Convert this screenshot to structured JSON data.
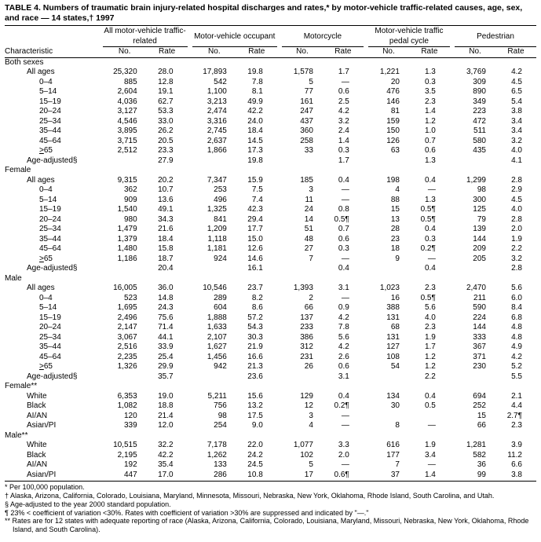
{
  "title": "TABLE 4. Numbers of traumatic brain injury-related hospital discharges and rates,* by motor-vehicle traffic-related causes, age, sex, and race — 14 states,† 1997",
  "header": {
    "characteristic": "Characteristic",
    "groups": [
      {
        "label": "All motor-vehicle traffic-related",
        "no": "No.",
        "rate": "Rate"
      },
      {
        "label": "Motor-vehicle occupant",
        "no": "No.",
        "rate": "Rate"
      },
      {
        "label": "Motorcycle",
        "no": "No.",
        "rate": "Rate"
      },
      {
        "label": "Motor-vehicle traffic pedal cycle",
        "no": "No.",
        "rate": "Rate"
      },
      {
        "label": "Pedestrian",
        "no": "No.",
        "rate": "Rate"
      }
    ]
  },
  "sections": [
    {
      "label": "Both sexes",
      "rows": [
        {
          "label": "All ages",
          "ind": 1,
          "v": [
            "25,320",
            "28.0",
            "17,893",
            "19.8",
            "1,578",
            "1.7",
            "1,221",
            "1.3",
            "3,769",
            "4.2"
          ]
        },
        {
          "label": "0–4",
          "ind": 2,
          "v": [
            "885",
            "12.8",
            "542",
            "7.8",
            "5",
            "—",
            "20",
            "0.3",
            "309",
            "4.5"
          ]
        },
        {
          "label": "5–14",
          "ind": 2,
          "v": [
            "2,604",
            "19.1",
            "1,100",
            "8.1",
            "77",
            "0.6",
            "476",
            "3.5",
            "890",
            "6.5"
          ]
        },
        {
          "label": "15–19",
          "ind": 2,
          "v": [
            "4,036",
            "62.7",
            "3,213",
            "49.9",
            "161",
            "2.5",
            "146",
            "2.3",
            "349",
            "5.4"
          ]
        },
        {
          "label": "20–24",
          "ind": 2,
          "v": [
            "3,127",
            "53.3",
            "2,474",
            "42.2",
            "247",
            "4.2",
            "81",
            "1.4",
            "223",
            "3.8"
          ]
        },
        {
          "label": "25–34",
          "ind": 2,
          "v": [
            "4,546",
            "33.0",
            "3,316",
            "24.0",
            "437",
            "3.2",
            "159",
            "1.2",
            "472",
            "3.4"
          ]
        },
        {
          "label": "35–44",
          "ind": 2,
          "v": [
            "3,895",
            "26.2",
            "2,745",
            "18.4",
            "360",
            "2.4",
            "150",
            "1.0",
            "511",
            "3.4"
          ]
        },
        {
          "label": "45–64",
          "ind": 2,
          "v": [
            "3,715",
            "20.5",
            "2,637",
            "14.5",
            "258",
            "1.4",
            "126",
            "0.7",
            "580",
            "3.2"
          ]
        },
        {
          "label": ">65",
          "ind": 2,
          "gt": true,
          "v": [
            "2,512",
            "23.3",
            "1,866",
            "17.3",
            "33",
            "0.3",
            "63",
            "0.6",
            "435",
            "4.0"
          ]
        },
        {
          "label": "Age-adjusted§",
          "ind": 1,
          "v": [
            "",
            "27.9",
            "",
            "19.8",
            "",
            "1.7",
            "",
            "1.3",
            "",
            "4.1"
          ]
        }
      ]
    },
    {
      "label": "Female",
      "rows": [
        {
          "label": "All ages",
          "ind": 1,
          "v": [
            "9,315",
            "20.2",
            "7,347",
            "15.9",
            "185",
            "0.4",
            "198",
            "0.4",
            "1,299",
            "2.8"
          ]
        },
        {
          "label": "0–4",
          "ind": 2,
          "v": [
            "362",
            "10.7",
            "253",
            "7.5",
            "3",
            "—",
            "4",
            "—",
            "98",
            "2.9"
          ]
        },
        {
          "label": "5–14",
          "ind": 2,
          "v": [
            "909",
            "13.6",
            "496",
            "7.4",
            "11",
            "—",
            "88",
            "1.3",
            "300",
            "4.5"
          ]
        },
        {
          "label": "15–19",
          "ind": 2,
          "v": [
            "1,540",
            "49.1",
            "1,325",
            "42.3",
            "24",
            "0.8",
            "15",
            "0.5¶",
            "125",
            "4.0"
          ]
        },
        {
          "label": "20–24",
          "ind": 2,
          "v": [
            "980",
            "34.3",
            "841",
            "29.4",
            "14",
            "0.5¶",
            "13",
            "0.5¶",
            "79",
            "2.8"
          ]
        },
        {
          "label": "25–34",
          "ind": 2,
          "v": [
            "1,479",
            "21.6",
            "1,209",
            "17.7",
            "51",
            "0.7",
            "28",
            "0.4",
            "139",
            "2.0"
          ]
        },
        {
          "label": "35–44",
          "ind": 2,
          "v": [
            "1,379",
            "18.4",
            "1,118",
            "15.0",
            "48",
            "0.6",
            "23",
            "0.3",
            "144",
            "1.9"
          ]
        },
        {
          "label": "45–64",
          "ind": 2,
          "v": [
            "1,480",
            "15.8",
            "1,181",
            "12.6",
            "27",
            "0.3",
            "18",
            "0.2¶",
            "209",
            "2.2"
          ]
        },
        {
          "label": ">65",
          "ind": 2,
          "gt": true,
          "v": [
            "1,186",
            "18.7",
            "924",
            "14.6",
            "7",
            "—",
            "9",
            "—",
            "205",
            "3.2"
          ]
        },
        {
          "label": "Age-adjusted§",
          "ind": 1,
          "v": [
            "",
            "20.4",
            "",
            "16.1",
            "",
            "0.4",
            "",
            "0.4",
            "",
            "2.8"
          ]
        }
      ]
    },
    {
      "label": "Male",
      "rows": [
        {
          "label": "All ages",
          "ind": 1,
          "v": [
            "16,005",
            "36.0",
            "10,546",
            "23.7",
            "1,393",
            "3.1",
            "1,023",
            "2.3",
            "2,470",
            "5.6"
          ]
        },
        {
          "label": "0–4",
          "ind": 2,
          "v": [
            "523",
            "14.8",
            "289",
            "8.2",
            "2",
            "—",
            "16",
            "0.5¶",
            "211",
            "6.0"
          ]
        },
        {
          "label": "5–14",
          "ind": 2,
          "v": [
            "1,695",
            "24.3",
            "604",
            "8.6",
            "66",
            "0.9",
            "388",
            "5.6",
            "590",
            "8.4"
          ]
        },
        {
          "label": "15–19",
          "ind": 2,
          "v": [
            "2,496",
            "75.6",
            "1,888",
            "57.2",
            "137",
            "4.2",
            "131",
            "4.0",
            "224",
            "6.8"
          ]
        },
        {
          "label": "20–24",
          "ind": 2,
          "v": [
            "2,147",
            "71.4",
            "1,633",
            "54.3",
            "233",
            "7.8",
            "68",
            "2.3",
            "144",
            "4.8"
          ]
        },
        {
          "label": "25–34",
          "ind": 2,
          "v": [
            "3,067",
            "44.1",
            "2,107",
            "30.3",
            "386",
            "5.6",
            "131",
            "1.9",
            "333",
            "4.8"
          ]
        },
        {
          "label": "35–44",
          "ind": 2,
          "v": [
            "2,516",
            "33.9",
            "1,627",
            "21.9",
            "312",
            "4.2",
            "127",
            "1.7",
            "367",
            "4.9"
          ]
        },
        {
          "label": "45–64",
          "ind": 2,
          "v": [
            "2,235",
            "25.4",
            "1,456",
            "16.6",
            "231",
            "2.6",
            "108",
            "1.2",
            "371",
            "4.2"
          ]
        },
        {
          "label": ">65",
          "ind": 2,
          "gt": true,
          "v": [
            "1,326",
            "29.9",
            "942",
            "21.3",
            "26",
            "0.6",
            "54",
            "1.2",
            "230",
            "5.2"
          ]
        },
        {
          "label": "Age-adjusted§",
          "ind": 1,
          "v": [
            "",
            "35.7",
            "",
            "23.6",
            "",
            "3.1",
            "",
            "2.2",
            "",
            "5.5"
          ]
        }
      ]
    },
    {
      "label": "Female**",
      "rows": [
        {
          "label": "White",
          "ind": 1,
          "v": [
            "6,353",
            "19.0",
            "5,211",
            "15.6",
            "129",
            "0.4",
            "134",
            "0.4",
            "694",
            "2.1"
          ]
        },
        {
          "label": "Black",
          "ind": 1,
          "v": [
            "1,082",
            "18.8",
            "756",
            "13.2",
            "12",
            "0.2¶",
            "30",
            "0.5",
            "252",
            "4.4"
          ]
        },
        {
          "label": "AI/AN",
          "ind": 1,
          "v": [
            "120",
            "21.4",
            "98",
            "17.5",
            "3",
            "—",
            "",
            "",
            "15",
            "2.7¶"
          ]
        },
        {
          "label": "Asian/PI",
          "ind": 1,
          "v": [
            "339",
            "12.0",
            "254",
            "9.0",
            "4",
            "—",
            "8",
            "—",
            "66",
            "2.3"
          ]
        }
      ]
    },
    {
      "label": "Male**",
      "rows": [
        {
          "label": "White",
          "ind": 1,
          "v": [
            "10,515",
            "32.2",
            "7,178",
            "22.0",
            "1,077",
            "3.3",
            "616",
            "1.9",
            "1,281",
            "3.9"
          ]
        },
        {
          "label": "Black",
          "ind": 1,
          "v": [
            "2,195",
            "42.2",
            "1,262",
            "24.2",
            "102",
            "2.0",
            "177",
            "3.4",
            "582",
            "11.2"
          ]
        },
        {
          "label": "AI/AN",
          "ind": 1,
          "v": [
            "192",
            "35.4",
            "133",
            "24.5",
            "5",
            "—",
            "7",
            "—",
            "36",
            "6.6"
          ]
        },
        {
          "label": "Asian/PI",
          "ind": 1,
          "v": [
            "447",
            "17.0",
            "286",
            "10.8",
            "17",
            "0.6¶",
            "37",
            "1.4",
            "99",
            "3.8"
          ]
        }
      ]
    }
  ],
  "footnotes": [
    "* Per 100,000 population.",
    "† Alaska, Arizona, California, Colorado, Louisiana, Maryland, Minnesota, Missouri, Nebraska, New York, Oklahoma, Rhode Island, South Carolina, and Utah.",
    "§ Age-adjusted to the year 2000 standard population.",
    "¶ 23% < coefficient of variation <30%. Rates with coefficient of variation >30% are suppressed and indicated by \"—.\"",
    "** Rates are for 12 states with adequate reporting of race (Alaska, Arizona, California, Colorado, Louisiana, Maryland, Missouri, Nebraska, New York, Oklahoma, Rhode Island, and South Carolina)."
  ]
}
